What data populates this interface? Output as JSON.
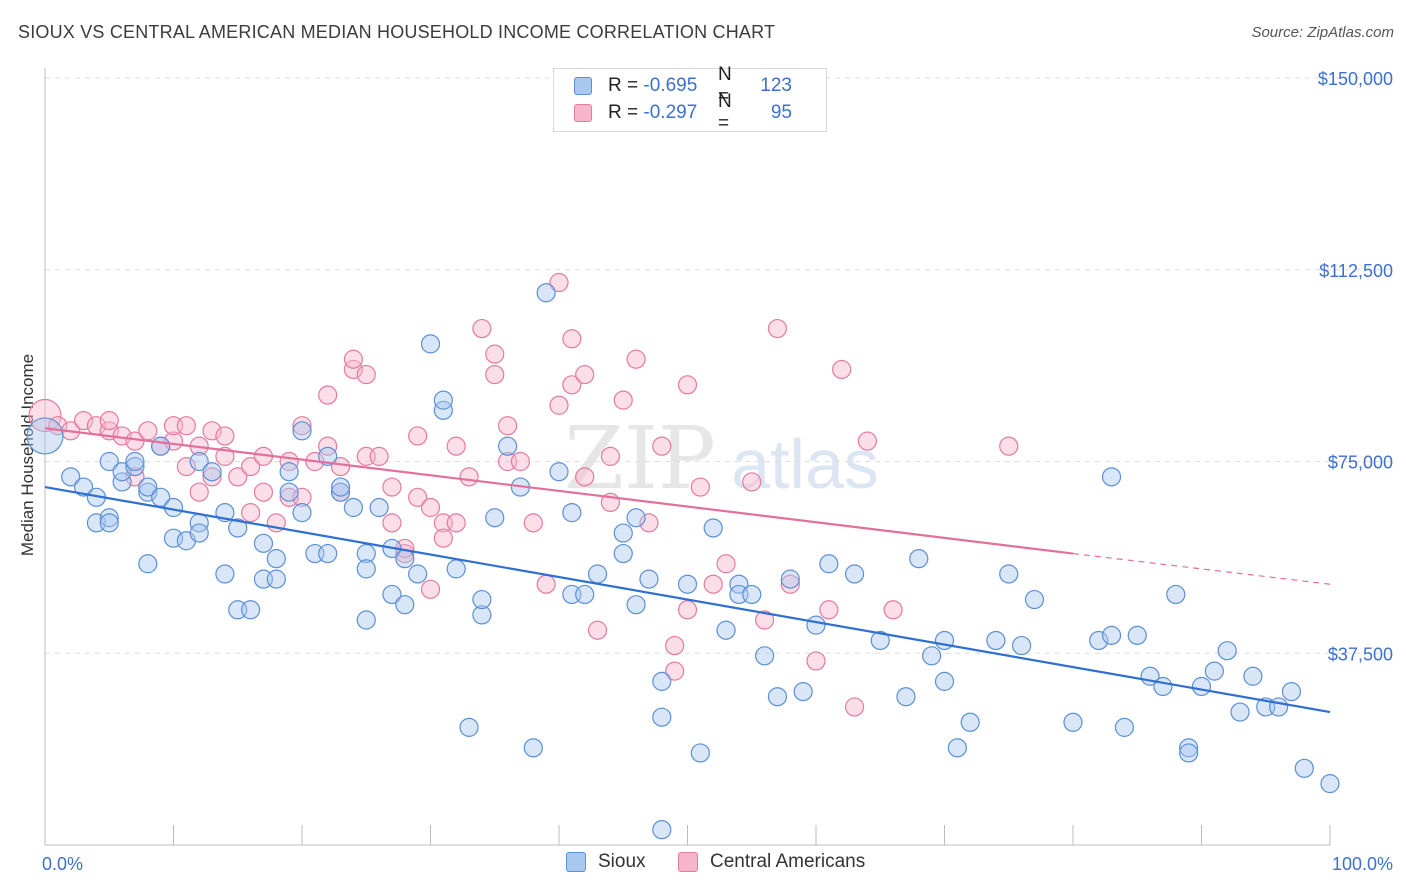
{
  "header": {
    "title": "SIOUX VS CENTRAL AMERICAN MEDIAN HOUSEHOLD INCOME CORRELATION CHART",
    "source": "Source: ZipAtlas.com"
  },
  "legend": {
    "rows": [
      {
        "r_label": "R =",
        "r_value": "-0.695",
        "n_label": "N =",
        "n_value": "123",
        "color": "#a9c8f0"
      },
      {
        "r_label": "R =",
        "r_value": "-0.297",
        "n_label": "N =",
        "n_value": "95",
        "color": "#f7b6cb"
      }
    ]
  },
  "bottom_legend": {
    "sioux": "Sioux",
    "central": "Central Americans"
  },
  "colors": {
    "sioux_fill": "#a9c8f0",
    "sioux_stroke": "#5b8fd6",
    "sioux_line": "#2f6fd1",
    "central_fill": "#f7b6cb",
    "central_stroke": "#e57aa0",
    "central_line": "#e3709a",
    "axis_text": "#3d6fcf",
    "grid": "#dddddd"
  },
  "chart_data": {
    "type": "scatter",
    "title": "SIOUX VS CENTRAL AMERICAN MEDIAN HOUSEHOLD INCOME CORRELATION CHART",
    "xlabel": "",
    "ylabel": "Median Household Income",
    "xlim": [
      0,
      100
    ],
    "ylim": [
      0,
      150000
    ],
    "x_tick_labels": [
      "0.0%",
      "100.0%"
    ],
    "y_ticks": [
      37500,
      75000,
      112500,
      150000
    ],
    "y_tick_labels": [
      "$37,500",
      "$75,000",
      "$112,500",
      "$150,000"
    ],
    "grid": "horizontal dashed",
    "legend_position": "top-center",
    "series": [
      {
        "name": "Sioux",
        "trend": {
          "x": [
            0,
            100
          ],
          "y": [
            70000,
            26000
          ]
        },
        "points": [
          [
            0,
            80000
          ],
          [
            2,
            72000
          ],
          [
            3,
            70000
          ],
          [
            4,
            63000
          ],
          [
            4,
            68000
          ],
          [
            5,
            64000
          ],
          [
            5,
            63000
          ],
          [
            5,
            75000
          ],
          [
            6,
            71000
          ],
          [
            6,
            73000
          ],
          [
            7,
            74000
          ],
          [
            7,
            75000
          ],
          [
            8,
            69000
          ],
          [
            8,
            55000
          ],
          [
            8,
            70000
          ],
          [
            9,
            68000
          ],
          [
            9,
            78000
          ],
          [
            10,
            66000
          ],
          [
            10,
            60000
          ],
          [
            11,
            59500
          ],
          [
            12,
            75000
          ],
          [
            12,
            63000
          ],
          [
            12,
            61000
          ],
          [
            13,
            73000
          ],
          [
            14,
            53000
          ],
          [
            14,
            65000
          ],
          [
            15,
            62000
          ],
          [
            15,
            46000
          ],
          [
            16,
            46000
          ],
          [
            17,
            52000
          ],
          [
            17,
            59000
          ],
          [
            18,
            52000
          ],
          [
            18,
            56000
          ],
          [
            19,
            69000
          ],
          [
            19,
            73000
          ],
          [
            20,
            81000
          ],
          [
            20,
            65000
          ],
          [
            21,
            57000
          ],
          [
            22,
            57000
          ],
          [
            22,
            76000
          ],
          [
            23,
            69000
          ],
          [
            23,
            70000
          ],
          [
            24,
            66000
          ],
          [
            25,
            57000
          ],
          [
            25,
            54000
          ],
          [
            25,
            44000
          ],
          [
            26,
            66000
          ],
          [
            27,
            49000
          ],
          [
            27,
            58000
          ],
          [
            28,
            47000
          ],
          [
            28,
            56000
          ],
          [
            29,
            53000
          ],
          [
            30,
            98000
          ],
          [
            31,
            85000
          ],
          [
            31,
            87000
          ],
          [
            32,
            54000
          ],
          [
            33,
            23000
          ],
          [
            34,
            45000
          ],
          [
            34,
            48000
          ],
          [
            35,
            64000
          ],
          [
            36,
            78000
          ],
          [
            37,
            70000
          ],
          [
            38,
            19000
          ],
          [
            39,
            108000
          ],
          [
            40,
            73000
          ],
          [
            41,
            65000
          ],
          [
            41,
            49000
          ],
          [
            42,
            49000
          ],
          [
            43,
            53000
          ],
          [
            45,
            61000
          ],
          [
            45,
            57000
          ],
          [
            46,
            64000
          ],
          [
            46,
            47000
          ],
          [
            47,
            52000
          ],
          [
            48,
            25000
          ],
          [
            48,
            3000
          ],
          [
            48,
            32000
          ],
          [
            50,
            51000
          ],
          [
            51,
            18000
          ],
          [
            52,
            62000
          ],
          [
            53,
            42000
          ],
          [
            54,
            51000
          ],
          [
            54,
            49000
          ],
          [
            55,
            49000
          ],
          [
            56,
            37000
          ],
          [
            57,
            29000
          ],
          [
            58,
            52000
          ],
          [
            59,
            30000
          ],
          [
            60,
            43000
          ],
          [
            61,
            55000
          ],
          [
            63,
            53000
          ],
          [
            65,
            40000
          ],
          [
            67,
            29000
          ],
          [
            68,
            56000
          ],
          [
            69,
            37000
          ],
          [
            70,
            40000
          ],
          [
            70,
            32000
          ],
          [
            71,
            19000
          ],
          [
            72,
            24000
          ],
          [
            74,
            40000
          ],
          [
            75,
            53000
          ],
          [
            76,
            39000
          ],
          [
            77,
            48000
          ],
          [
            80,
            24000
          ],
          [
            82,
            40000
          ],
          [
            83,
            41000
          ],
          [
            83,
            72000
          ],
          [
            84,
            23000
          ],
          [
            85,
            41000
          ],
          [
            86,
            33000
          ],
          [
            87,
            31000
          ],
          [
            88,
            49000
          ],
          [
            89,
            19000
          ],
          [
            89,
            18000
          ],
          [
            90,
            31000
          ],
          [
            91,
            34000
          ],
          [
            92,
            38000
          ],
          [
            93,
            26000
          ],
          [
            94,
            33000
          ],
          [
            95,
            27000
          ],
          [
            96,
            27000
          ],
          [
            97,
            30000
          ],
          [
            98,
            15000
          ],
          [
            100,
            12000
          ]
        ]
      },
      {
        "name": "Central Americans",
        "trend": {
          "x": [
            0,
            80
          ],
          "y": [
            81500,
            57000
          ]
        },
        "trend_dashed": {
          "x": [
            80,
            100
          ],
          "y": [
            57000,
            51000
          ]
        },
        "points": [
          [
            0,
            84000
          ],
          [
            1,
            82000
          ],
          [
            2,
            81000
          ],
          [
            3,
            83000
          ],
          [
            4,
            82000
          ],
          [
            5,
            81000
          ],
          [
            5,
            83000
          ],
          [
            6,
            80000
          ],
          [
            7,
            79000
          ],
          [
            7,
            72000
          ],
          [
            8,
            81000
          ],
          [
            9,
            78000
          ],
          [
            10,
            79000
          ],
          [
            10,
            82000
          ],
          [
            11,
            82000
          ],
          [
            11,
            74000
          ],
          [
            12,
            78000
          ],
          [
            12,
            69000
          ],
          [
            13,
            72000
          ],
          [
            13,
            81000
          ],
          [
            14,
            80000
          ],
          [
            14,
            76000
          ],
          [
            15,
            72000
          ],
          [
            16,
            74000
          ],
          [
            16,
            65000
          ],
          [
            17,
            69000
          ],
          [
            17,
            76000
          ],
          [
            18,
            63000
          ],
          [
            19,
            75000
          ],
          [
            19,
            68000
          ],
          [
            20,
            82000
          ],
          [
            20,
            68000
          ],
          [
            21,
            75000
          ],
          [
            22,
            78000
          ],
          [
            22,
            88000
          ],
          [
            23,
            69000
          ],
          [
            23,
            74000
          ],
          [
            24,
            93000
          ],
          [
            24,
            95000
          ],
          [
            25,
            92000
          ],
          [
            25,
            76000
          ],
          [
            26,
            76000
          ],
          [
            27,
            63000
          ],
          [
            27,
            70000
          ],
          [
            28,
            57000
          ],
          [
            28,
            58000
          ],
          [
            29,
            68000
          ],
          [
            29,
            80000
          ],
          [
            30,
            50000
          ],
          [
            30,
            66000
          ],
          [
            31,
            63000
          ],
          [
            31,
            60000
          ],
          [
            32,
            78000
          ],
          [
            32,
            63000
          ],
          [
            33,
            72000
          ],
          [
            34,
            101000
          ],
          [
            35,
            96000
          ],
          [
            35,
            92000
          ],
          [
            36,
            82000
          ],
          [
            36,
            75000
          ],
          [
            37,
            75000
          ],
          [
            38,
            63000
          ],
          [
            39,
            51000
          ],
          [
            40,
            110000
          ],
          [
            40,
            86000
          ],
          [
            41,
            99000
          ],
          [
            41,
            90000
          ],
          [
            42,
            72000
          ],
          [
            42,
            92000
          ],
          [
            43,
            42000
          ],
          [
            44,
            76000
          ],
          [
            44,
            67000
          ],
          [
            45,
            87000
          ],
          [
            46,
            95000
          ],
          [
            47,
            63000
          ],
          [
            48,
            78000
          ],
          [
            49,
            34000
          ],
          [
            49,
            39000
          ],
          [
            50,
            46000
          ],
          [
            50,
            90000
          ],
          [
            51,
            70000
          ],
          [
            52,
            51000
          ],
          [
            53,
            55000
          ],
          [
            55,
            71000
          ],
          [
            56,
            44000
          ],
          [
            57,
            101000
          ],
          [
            58,
            51000
          ],
          [
            60,
            36000
          ],
          [
            61,
            46000
          ],
          [
            62,
            93000
          ],
          [
            63,
            27000
          ],
          [
            64,
            79000
          ],
          [
            66,
            46000
          ],
          [
            75,
            78000
          ]
        ]
      }
    ]
  }
}
